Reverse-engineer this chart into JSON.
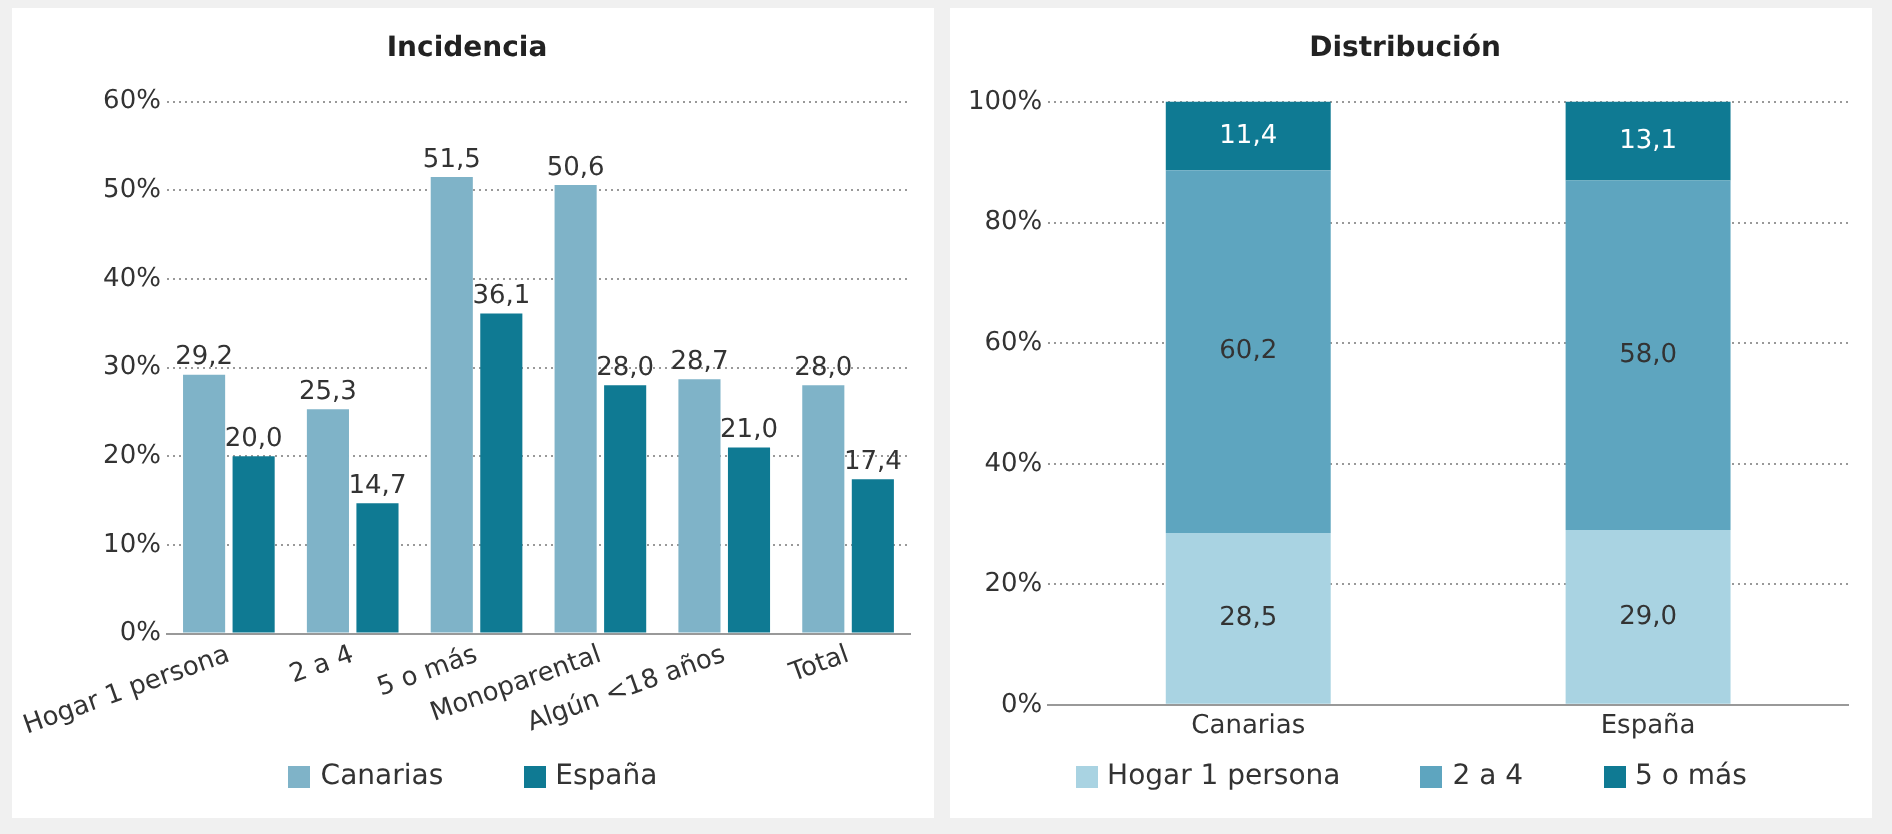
{
  "chart_data": [
    {
      "type": "bar",
      "title": "Incidencia",
      "categories": [
        "Hogar 1 persona",
        "2 a 4",
        "5 o más",
        "Monoparental",
        "Algún <18 años",
        "Total"
      ],
      "series": [
        {
          "name": "Canarias",
          "color": "#7fb3c8",
          "values": [
            29.2,
            25.3,
            51.5,
            50.6,
            28.7,
            28.0
          ],
          "value_labels": [
            "29,2",
            "25,3",
            "51,5",
            "50,6",
            "28,7",
            "28,0"
          ]
        },
        {
          "name": "España",
          "color": "#0f7a93",
          "values": [
            20.0,
            14.7,
            36.1,
            28.0,
            21.0,
            17.4
          ],
          "value_labels": [
            "20,0",
            "14,7",
            "36,1",
            "28,0",
            "21,0",
            "17,4"
          ]
        }
      ],
      "ylim": [
        0,
        60
      ],
      "yticks": [
        {
          "value": 0,
          "label": "0%"
        },
        {
          "value": 10,
          "label": "10%"
        },
        {
          "value": 20,
          "label": "20%"
        },
        {
          "value": 30,
          "label": "30%"
        },
        {
          "value": 40,
          "label": "40%"
        },
        {
          "value": 50,
          "label": "50%"
        },
        {
          "value": 60,
          "label": "60%"
        }
      ],
      "grid": "y",
      "legend": "bottom"
    },
    {
      "type": "bar",
      "title": "Distribución",
      "categories": [
        "Canarias",
        "España"
      ],
      "stacked": true,
      "series": [
        {
          "name": "Hogar 1 persona",
          "color": "#a9d3e2",
          "values": [
            28.5,
            29.0
          ],
          "value_labels": [
            "28,5",
            "29,0"
          ]
        },
        {
          "name": "2 a 4",
          "color": "#5ea5bf",
          "values": [
            60.2,
            58.0
          ],
          "value_labels": [
            "60,2",
            "58,0"
          ]
        },
        {
          "name": "5 o más",
          "color": "#0f7a93",
          "values": [
            11.4,
            13.1
          ],
          "value_labels": [
            "11,4",
            "13,1"
          ]
        }
      ],
      "ylim": [
        0,
        100.1
      ],
      "yticks": [
        {
          "value": 0,
          "label": "0%"
        },
        {
          "value": 20,
          "label": "20%"
        },
        {
          "value": 40,
          "label": "40%"
        },
        {
          "value": 60,
          "label": "60%"
        },
        {
          "value": 80,
          "label": "80%"
        },
        {
          "value": 100,
          "label": "100%"
        }
      ],
      "grid": "y",
      "legend": "bottom"
    }
  ]
}
